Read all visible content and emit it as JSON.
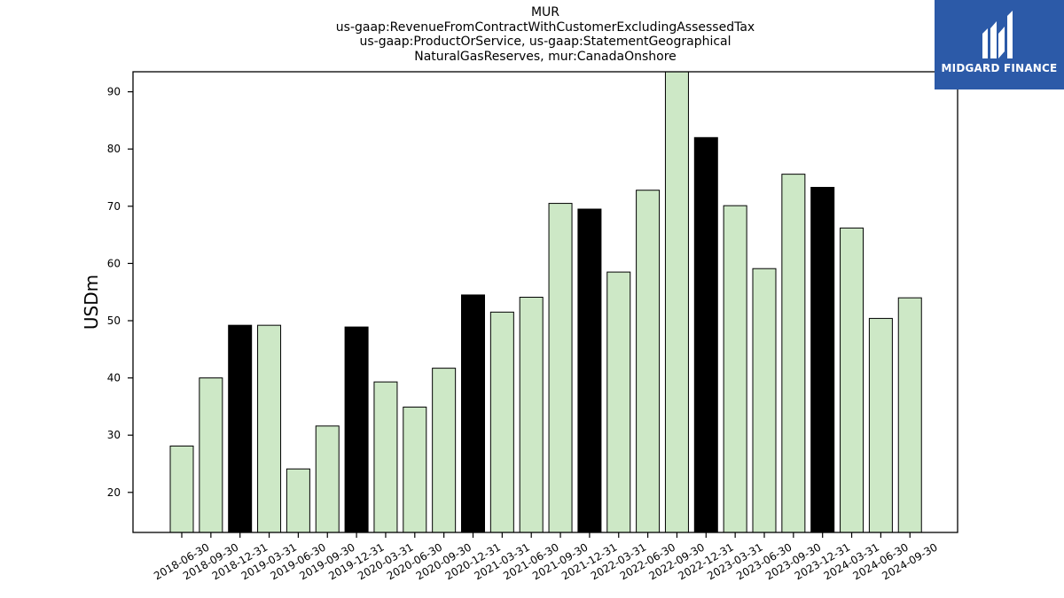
{
  "title_lines": [
    "MUR",
    "us-gaap:RevenueFromContractWithCustomerExcludingAssessedTax",
    "us-gaap:ProductOrService, us-gaap:StatementGeographical",
    "NaturalGasReserves, mur:CanadaOnshore"
  ],
  "logo": {
    "text": "MIDGARD FINANCE",
    "bg_color": "#2c5aa8"
  },
  "chart_data": {
    "type": "bar",
    "ylabel": "USDm",
    "xlabel": "",
    "ylim": [
      13,
      93.5
    ],
    "yticks": [
      20,
      30,
      40,
      50,
      60,
      70,
      80,
      90
    ],
    "grid": false,
    "colors": {
      "normal": "#cde8c6",
      "year_end": "#000000",
      "edge": "#000000"
    },
    "categories": [
      "2018-06-30",
      "2018-09-30",
      "2018-12-31",
      "2019-03-31",
      "2019-06-30",
      "2019-09-30",
      "2019-12-31",
      "2020-03-31",
      "2020-06-30",
      "2020-09-30",
      "2020-12-31",
      "2021-03-31",
      "2021-06-30",
      "2021-09-30",
      "2021-12-31",
      "2022-03-31",
      "2022-06-30",
      "2022-09-30",
      "2022-12-31",
      "2023-03-31",
      "2023-06-30",
      "2023-09-30",
      "2023-12-31",
      "2024-03-31",
      "2024-06-30",
      "2024-09-30"
    ],
    "values": [
      28.1,
      40.0,
      49.2,
      49.2,
      24.1,
      31.6,
      48.9,
      39.3,
      34.9,
      41.7,
      54.5,
      51.5,
      54.1,
      70.5,
      69.5,
      58.5,
      72.8,
      93.5,
      82.0,
      70.1,
      59.1,
      75.6,
      73.3,
      66.2,
      50.4,
      54.0
    ],
    "highlight": [
      false,
      false,
      true,
      false,
      false,
      false,
      true,
      false,
      false,
      false,
      true,
      false,
      false,
      false,
      true,
      false,
      false,
      false,
      true,
      false,
      false,
      false,
      true,
      false,
      false,
      false
    ]
  }
}
